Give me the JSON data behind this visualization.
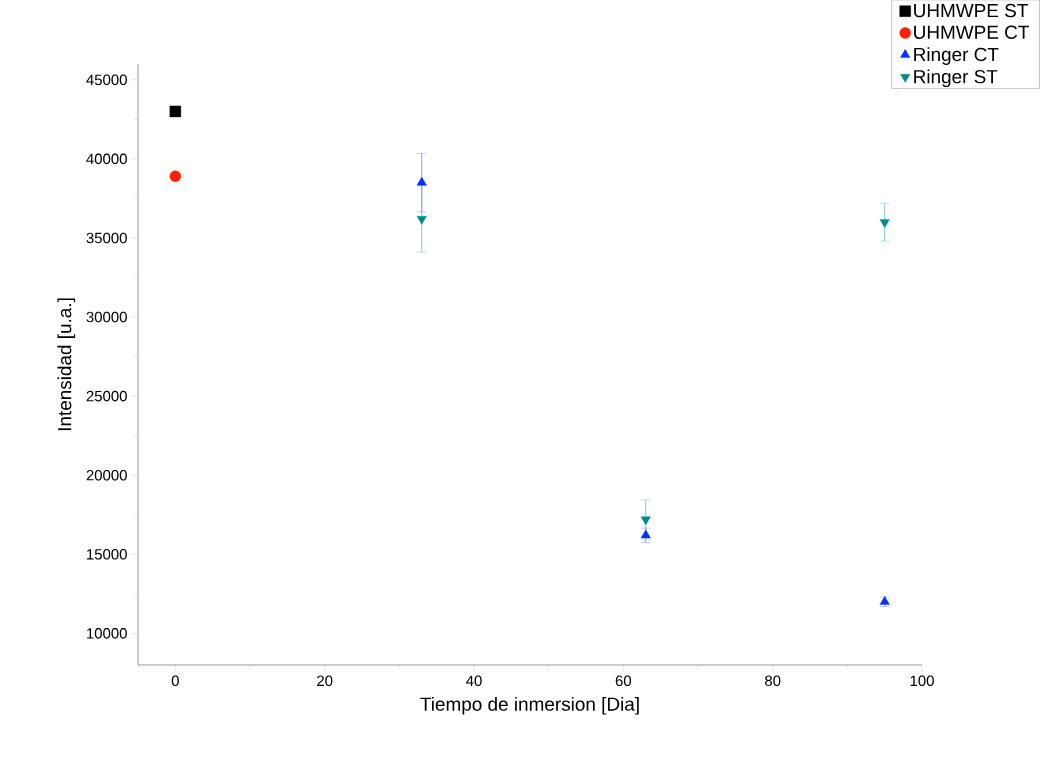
{
  "chart_data": {
    "type": "scatter",
    "xlabel": "Tiempo de inmersion [Dia]",
    "ylabel": "Intensidad [u.a.]",
    "xlim": [
      -5,
      100
    ],
    "ylim": [
      8000,
      46000
    ],
    "xticks": [
      0,
      20,
      40,
      60,
      80,
      100
    ],
    "yticks": [
      10000,
      15000,
      20000,
      25000,
      30000,
      35000,
      40000,
      45000
    ],
    "grid": false,
    "legend": "top right",
    "series": [
      {
        "name": "UHMWPE ST",
        "color": "#000000",
        "marker": "square",
        "x": [
          0
        ],
        "values": [
          43000
        ]
      },
      {
        "name": "UHMWPE CT",
        "color": "#ff2000",
        "marker": "circle",
        "x": [
          0
        ],
        "values": [
          38900
        ]
      },
      {
        "name": "Ringer CT",
        "color": "#0033ff",
        "marker": "triangle",
        "x": [
          33,
          63,
          95
        ],
        "values": [
          38500,
          16200,
          12000
        ],
        "errors": [
          1850,
          450,
          300
        ]
      },
      {
        "name": "Ringer ST",
        "color": "#008b8b",
        "marker": "triangle down",
        "x": [
          33,
          63,
          95
        ],
        "values": [
          36200,
          17200,
          36000
        ],
        "errors": [
          2100,
          1250,
          1200
        ]
      }
    ]
  }
}
